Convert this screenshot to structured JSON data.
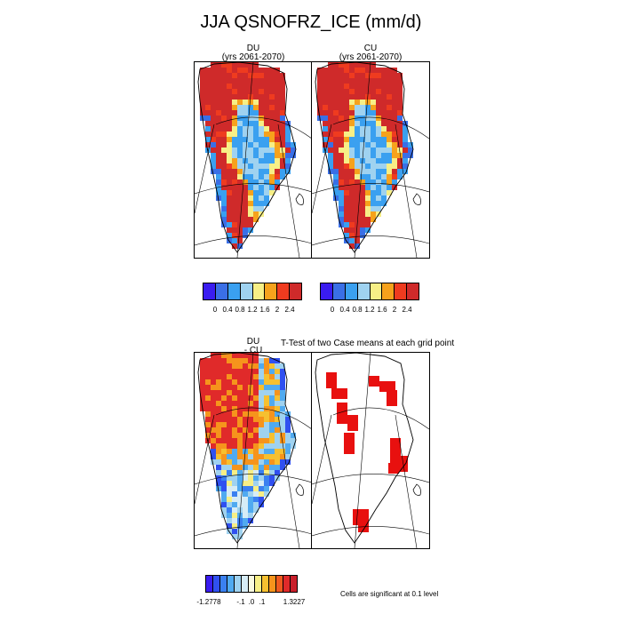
{
  "figure": {
    "title": "JJA QSNOFRZ_ICE (mm/d)",
    "panels": [
      {
        "id": "du",
        "title": "DU",
        "subtitle": "(yrs 2061-2070)"
      },
      {
        "id": "cu",
        "title": "CU",
        "subtitle": "(yrs 2061-2070)"
      },
      {
        "id": "diff",
        "title": "DU",
        "subtitle": "- CU"
      },
      {
        "id": "ttest",
        "title": "T-Test of two Case means at each grid point",
        "subtitle": ""
      }
    ],
    "colorbar_top": {
      "colors": [
        "#3a1cf0",
        "#3a6fe6",
        "#3aa0f0",
        "#9fd2f0",
        "#f7ef86",
        "#f6a21c",
        "#ef3b1f",
        "#cf2a2a"
      ],
      "labels": [
        "0",
        "0.4",
        "0.8",
        "1.2",
        "1.6",
        "2",
        "2.4"
      ]
    },
    "colorbar_bottom": {
      "colors": [
        "#3a1cf0",
        "#3050f0",
        "#3a80f0",
        "#50aaf0",
        "#9fd2f0",
        "#d6ecf6",
        "#fafae0",
        "#f7ef86",
        "#f6c030",
        "#f6941c",
        "#ef5a1f",
        "#e02a2a",
        "#c81e2a"
      ],
      "labels": [
        "-1.2778",
        "-.1",
        ".0",
        ".1",
        "1.3227"
      ]
    },
    "significance_note": "Cells are significant at 0.1 level",
    "significance_color": "#e8100f"
  }
}
